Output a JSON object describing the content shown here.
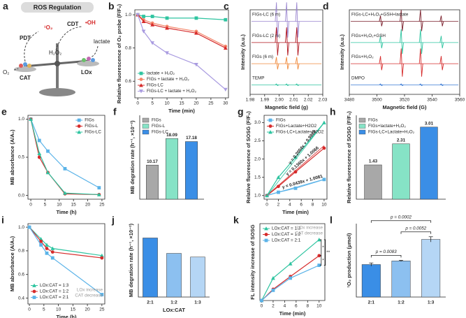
{
  "diagram": {
    "panel": "a",
    "title": "ROS Regulation",
    "labels": {
      "pdt": "PDT",
      "singlet": "¹O₂",
      "cdt": "CDT",
      "hydroxyl": "•OH",
      "h2o2": "H₂O₂",
      "lactate": "lactate",
      "o2": "O₂",
      "cat": "CAT",
      "lox": "LOx"
    }
  },
  "chart_data": [
    {
      "panel": "b",
      "type": "line",
      "ylabel": "Relative fluorescence of O₂ probe (F/F₀)",
      "xlabel": "Time (min)",
      "x": [
        0,
        2,
        5,
        10,
        20,
        30
      ],
      "xlim": [
        -1,
        31
      ],
      "xticks": [
        0,
        5,
        10,
        15,
        20,
        25,
        30
      ],
      "ylim": [
        0.5,
        1.03
      ],
      "yticks": [
        0.6,
        0.8,
        {
          "value": 1,
          "label": "1.0"
        }
      ],
      "legend": "lower left",
      "series": [
        {
          "name": "lactate + H₂O₂",
          "color": "#2ec4a0",
          "marker": "square",
          "values": [
            1.0,
            0.99,
            0.99,
            0.98,
            0.98,
            0.97
          ]
        },
        {
          "name": "FIGs + lactate + H₂O₂",
          "color": "#f4876b",
          "marker": "circle",
          "values": [
            1.0,
            0.97,
            0.95,
            0.93,
            0.9,
            0.81
          ]
        },
        {
          "name": "FIGs-LC",
          "color": "#d62b2b",
          "marker": "triangle",
          "values": [
            1.0,
            0.96,
            0.94,
            0.92,
            0.89,
            0.8
          ]
        },
        {
          "name": "FIGs-LC + lactate + H₂O₂",
          "color": "#a99be0",
          "marker": "down-triangle",
          "values": [
            1.0,
            0.9,
            0.83,
            0.77,
            0.7,
            0.55
          ]
        }
      ]
    },
    {
      "panel": "c",
      "type": "spectrum",
      "xlabel": "Magnetic field (g)",
      "ylabel": "Intensity (a.u.)",
      "xlim": [
        1.98,
        2.03
      ],
      "xticks": [
        1.98,
        1.99,
        {
          "value": 2,
          "label": "2.00"
        },
        2.01,
        2.02,
        2.03
      ],
      "series": [
        {
          "name": "TEMP",
          "color": "#2ec4a0",
          "x": [
            1.9985,
            2.0055,
            2.0125
          ],
          "values": [
            0.05,
            0.05,
            0.05
          ]
        },
        {
          "name": "FIGs (6 m)",
          "color": "#f08a3c",
          "x": [
            1.9985,
            2.0055,
            2.0125
          ],
          "values": [
            0.35,
            0.35,
            0.35
          ]
        },
        {
          "name": "FIGs-LC (2 m)",
          "color": "#b0141e",
          "x": [
            1.9985,
            2.0055,
            2.0125
          ],
          "values": [
            0.8,
            0.8,
            0.8
          ]
        },
        {
          "name": "FIGs-LC (6 m)",
          "color": "#9b86d0",
          "x": [
            1.9985,
            2.0055,
            2.0125
          ],
          "values": [
            1.0,
            1.0,
            1.0
          ]
        }
      ]
    },
    {
      "panel": "d",
      "type": "spectrum",
      "xlabel": "Magnetic field (G)",
      "ylabel": "Intensity (a.u.)",
      "xlim": [
        3480,
        3560
      ],
      "xticks": [
        3480,
        3500,
        3520,
        3540,
        3560
      ],
      "series": [
        {
          "name": "DMPO",
          "color": "#3a7bd5",
          "x": [
            3503,
            3518,
            3532,
            3547
          ],
          "values": [
            0.05,
            0.05,
            0.05,
            0.05
          ]
        },
        {
          "name": "FIGs+H₂O₂",
          "color": "#d62b2b",
          "x": [
            3503,
            3518,
            3532,
            3547
          ],
          "values": [
            0.4,
            0.8,
            0.8,
            0.4
          ]
        },
        {
          "name": "FIGs+H₂O₂+GSH",
          "color": "#2ec4a0",
          "x": [
            3503,
            3518,
            3532,
            3547
          ],
          "values": [
            0.35,
            0.7,
            0.7,
            0.35
          ]
        },
        {
          "name": "FIGs-LC+H₂O₂+GSH+lactate",
          "color": "#7a1f2b",
          "x": [
            3503,
            3518,
            3532,
            3547
          ],
          "values": [
            0.3,
            0.6,
            0.6,
            0.3
          ]
        }
      ]
    },
    {
      "panel": "e",
      "type": "line",
      "ylabel": "MB absorbance (A/A₀)",
      "xlabel": "Time (h)",
      "x": [
        0,
        3,
        6,
        12,
        24
      ],
      "xlim": [
        -1,
        26
      ],
      "xticks": [
        0,
        5,
        10,
        15,
        20,
        25
      ],
      "ylim": [
        -0.05,
        1.05
      ],
      "yticks": [
        {
          "value": 0,
          "label": "0.0"
        },
        0.5,
        {
          "value": 1,
          "label": "1.0"
        }
      ],
      "legend": "upper right",
      "series": [
        {
          "name": "FIGs",
          "color": "#5bb3e8",
          "marker": "square",
          "values": [
            1.0,
            0.72,
            0.58,
            0.35,
            0.1
          ]
        },
        {
          "name": "FIGs-L",
          "color": "#d62b2b",
          "marker": "circle",
          "values": [
            1.0,
            0.5,
            0.3,
            0.02,
            0.01
          ]
        },
        {
          "name": "FIGs-LC",
          "color": "#2ec4a0",
          "marker": "triangle",
          "values": [
            1.0,
            0.55,
            0.3,
            0.03,
            0.01
          ]
        }
      ]
    },
    {
      "panel": "f",
      "type": "bar",
      "ylabel": "MB degration rate (h⁻¹, ×10⁻²)",
      "ylim": [
        0,
        25
      ],
      "legend": "upper left",
      "series": [
        {
          "name": "FIGs",
          "color": "#a8a8a8",
          "values": [
            10.17
          ]
        },
        {
          "name": "FIGs-L",
          "color": "#86e3c6",
          "values": [
            18.09
          ]
        },
        {
          "name": "FIGs-LC",
          "color": "#3a8ee6",
          "values": [
            17.18
          ]
        }
      ]
    },
    {
      "panel": "g",
      "type": "line",
      "ylabel": "Relative fluorescence of SOSG (F/F₀)",
      "xlabel": "Time (min)",
      "x": [
        0,
        2,
        5,
        10
      ],
      "xlim": [
        -0.5,
        10.5
      ],
      "xticks": [
        0,
        2,
        4,
        6,
        8,
        10
      ],
      "ylim": [
        0.9,
        3.2
      ],
      "yticks": [
        {
          "value": 1,
          "label": "1.0"
        },
        1.5,
        {
          "value": 2,
          "label": "2.0"
        },
        2.5,
        {
          "value": 3,
          "label": "3.0"
        }
      ],
      "legend": "upper left",
      "series": [
        {
          "name": "FIGs",
          "color": "#5bb3e8",
          "marker": "square",
          "values": [
            1.0,
            1.09,
            1.2,
            1.44
          ]
        },
        {
          "name": "FIGs+Lactate+H2O2",
          "color": "#d62b2b",
          "marker": "circle",
          "values": [
            1.0,
            1.25,
            1.65,
            2.3
          ]
        },
        {
          "name": "FIGs-LC+Lactate+H2O2",
          "color": "#2ec4a0",
          "marker": "triangle",
          "values": [
            1.0,
            1.5,
            2.05,
            3.0
          ]
        }
      ],
      "fits": [
        {
          "slope": 0.0439,
          "intercept": 1.0081,
          "color": "#5bb3e8",
          "label": "y = 0.0439x + 1.0081"
        },
        {
          "slope": 0.136,
          "intercept": 1.0066,
          "color": "#d62b2b",
          "label": "y = 0.1360x + 1.0066"
        },
        {
          "slope": 0.2004,
          "intercept": 0.9868,
          "color": "#2ec4a0",
          "label": "y = 0.2004x + 0.9868"
        }
      ]
    },
    {
      "panel": "h",
      "type": "bar",
      "ylabel": "Relative fluorescence of SOSG (F/F₀)",
      "ylim": [
        0,
        3.5
      ],
      "legend": "upper left",
      "series": [
        {
          "name": "FIGs",
          "color": "#a8a8a8",
          "values": [
            1.43
          ]
        },
        {
          "name": "FIGs+lactate+H₂O₂",
          "color": "#86e3c6",
          "values": [
            2.31
          ]
        },
        {
          "name": "FIGs-LC+Lactate+H₂O₂",
          "color": "#3a8ee6",
          "values": [
            3.01
          ]
        }
      ]
    },
    {
      "panel": "i",
      "type": "line",
      "ylabel": "MB absorbance (A/A₀)",
      "xlabel": "Time (h)",
      "x": [
        0,
        4,
        6,
        8,
        25
      ],
      "xlim": [
        -0.5,
        26
      ],
      "xticks": [
        0,
        5,
        10,
        15,
        20,
        25
      ],
      "ylim": [
        0.35,
        1.03
      ],
      "yticks": [
        0.4,
        0.6,
        0.8,
        {
          "value": 1,
          "label": "1.0"
        }
      ],
      "legend": "lower left",
      "annotations": [
        "LOx increase",
        "CAT decrease"
      ],
      "series": [
        {
          "name": "LOx:CAT = 1:3",
          "color": "#2ec4a0",
          "marker": "triangle",
          "values": [
            1.0,
            0.9,
            0.85,
            0.82,
            0.76
          ]
        },
        {
          "name": "LOx:CAT = 1:2",
          "color": "#d62b2b",
          "marker": "circle",
          "values": [
            1.0,
            0.88,
            0.82,
            0.79,
            0.74
          ]
        },
        {
          "name": "LOx:CAT = 2:1",
          "color": "#5bb3e8",
          "marker": "square",
          "values": [
            1.0,
            0.85,
            0.78,
            0.74,
            0.43
          ]
        }
      ]
    },
    {
      "panel": "j",
      "type": "bar",
      "ylabel": "MB degration rate (h⁻¹, ×10⁻²)",
      "xlabel": "LOx:CAT",
      "categories": [
        "2:1",
        "1:2",
        "1:3"
      ],
      "values": [
        16.1,
        11.9,
        10.9
      ],
      "colors": [
        "#3a8ee6",
        "#8cc0f0",
        "#b5d6f5"
      ],
      "ylim": [
        0,
        20
      ]
    },
    {
      "panel": "k",
      "type": "line",
      "ylabel": "FL intensity increase of SOSG",
      "xlabel": "Time (min)",
      "x": [
        0,
        2,
        5,
        10
      ],
      "xlim": [
        -0.3,
        11
      ],
      "xticks": [
        0,
        2,
        4,
        6,
        8,
        10
      ],
      "ylim": [
        0,
        2400
      ],
      "legend": "upper left",
      "annotations": [
        "LOx increase",
        "CAT decrease"
      ],
      "significance": [
        "*",
        "*",
        "**"
      ],
      "series": [
        {
          "name": "LOx:CAT = 1:3",
          "color": "#2ec4a0",
          "marker": "triangle",
          "values": [
            0,
            700,
            1150,
            1900
          ]
        },
        {
          "name": "LOx:CAT = 1:2",
          "color": "#d62b2b",
          "marker": "circle",
          "values": [
            0,
            350,
            750,
            1400
          ]
        },
        {
          "name": "LOx:CAT = 2:1",
          "color": "#5bb3e8",
          "marker": "square",
          "values": [
            0,
            320,
            700,
            1100
          ]
        }
      ]
    },
    {
      "panel": "l",
      "type": "bar",
      "ylabel": "¹O₂ production (μmol)",
      "categories": [
        "2:1",
        "1:2",
        "1:3"
      ],
      "values": [
        31,
        34.5,
        55
      ],
      "errors": [
        1.5,
        0.6,
        2.5
      ],
      "colors": [
        "#3a8ee6",
        "#8cc0f0",
        "#b5d6f5"
      ],
      "ylim": [
        0,
        70
      ],
      "p_values": [
        "p = 0.0083",
        "p = 0.0052",
        "p = 0.0002"
      ]
    }
  ]
}
